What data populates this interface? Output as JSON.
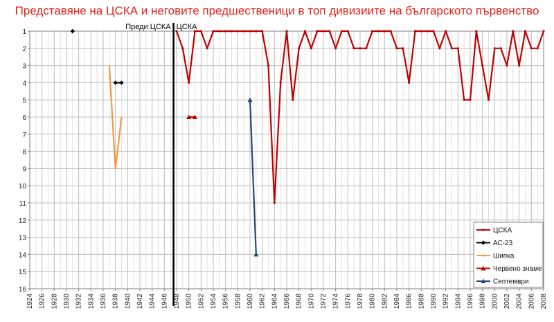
{
  "chart_data": {
    "type": "line",
    "title": "Представяне на ЦСКА и неговите предшественици в топ дивизиите на българското първенство",
    "xlim": [
      1924,
      2008
    ],
    "ylim": [
      1,
      16
    ],
    "y_inverted": true,
    "x_ticks": [
      "1924",
      "1926",
      "1928",
      "1930",
      "1932",
      "1934",
      "1936",
      "1938",
      "1940",
      "1942",
      "1944",
      "1946",
      "1948",
      "1950",
      "1952",
      "1954",
      "1956",
      "1958",
      "1960",
      "1962",
      "1964",
      "1966",
      "1968",
      "1970",
      "1972",
      "1974",
      "1976",
      "1978",
      "1980",
      "1982",
      "1984",
      "1986",
      "1988",
      "1990",
      "1992",
      "1994",
      "1996",
      "1998",
      "2000",
      "2002",
      "2004",
      "2006",
      "2008"
    ],
    "y_ticks": [
      "1",
      "2",
      "3",
      "4",
      "5",
      "6",
      "7",
      "8",
      "9",
      "10",
      "11",
      "12",
      "13",
      "14",
      "15",
      "16"
    ],
    "grid": true,
    "legend_position": "bottom-right",
    "era_divider": {
      "x": 1947.5,
      "before_label": "Преди ЦСКА",
      "after_label": "ЦСКА"
    },
    "series": [
      {
        "name": "ЦСКА",
        "color": "#c00000",
        "marker": "dot",
        "points": [
          [
            1948,
            1
          ],
          [
            1949,
            2
          ],
          [
            1950,
            4
          ],
          [
            1951,
            1
          ],
          [
            1952,
            1
          ],
          [
            1953,
            2
          ],
          [
            1954,
            1
          ],
          [
            1955,
            1
          ],
          [
            1956,
            1
          ],
          [
            1957,
            1
          ],
          [
            1958,
            1
          ],
          [
            1959,
            1
          ],
          [
            1960,
            1
          ],
          [
            1961,
            1
          ],
          [
            1962,
            1
          ],
          [
            1963,
            3
          ],
          [
            1964,
            11
          ],
          [
            1965,
            4
          ],
          [
            1966,
            1
          ],
          [
            1967,
            5
          ],
          [
            1968,
            2
          ],
          [
            1969,
            1
          ],
          [
            1970,
            2
          ],
          [
            1971,
            1
          ],
          [
            1972,
            1
          ],
          [
            1973,
            1
          ],
          [
            1974,
            2
          ],
          [
            1975,
            1
          ],
          [
            1976,
            1
          ],
          [
            1977,
            2
          ],
          [
            1978,
            2
          ],
          [
            1979,
            2
          ],
          [
            1980,
            1
          ],
          [
            1981,
            1
          ],
          [
            1982,
            1
          ],
          [
            1983,
            1
          ],
          [
            1984,
            2
          ],
          [
            1985,
            2
          ],
          [
            1986,
            4
          ],
          [
            1987,
            1
          ],
          [
            1988,
            1
          ],
          [
            1989,
            1
          ],
          [
            1990,
            1
          ],
          [
            1991,
            2
          ],
          [
            1992,
            1
          ],
          [
            1993,
            2
          ],
          [
            1994,
            2
          ],
          [
            1995,
            5
          ],
          [
            1996,
            5
          ],
          [
            1997,
            1
          ],
          [
            1998,
            3
          ],
          [
            1999,
            5
          ],
          [
            2000,
            2
          ],
          [
            2001,
            2
          ],
          [
            2002,
            3
          ],
          [
            2003,
            1
          ],
          [
            2004,
            3
          ],
          [
            2005,
            1
          ],
          [
            2006,
            2
          ],
          [
            2007,
            2
          ],
          [
            2008,
            1
          ]
        ]
      },
      {
        "name": "АС-23",
        "color": "#000000",
        "marker": "diamond",
        "points": [
          [
            1931,
            1
          ],
          [
            1938,
            4
          ],
          [
            1939,
            4
          ]
        ]
      },
      {
        "name": "Шипка",
        "color": "#f79646",
        "marker": "none",
        "points": [
          [
            1937,
            3
          ],
          [
            1938,
            9
          ],
          [
            1939,
            6
          ]
        ]
      },
      {
        "name": "Червено знаме",
        "color": "#c00000",
        "marker": "triangle",
        "points": [
          [
            1950,
            6
          ],
          [
            1951,
            6
          ]
        ]
      },
      {
        "name": "Септември",
        "color": "#1f497d",
        "marker": "triangle",
        "points": [
          [
            1960,
            5
          ],
          [
            1961,
            14
          ]
        ]
      }
    ]
  }
}
